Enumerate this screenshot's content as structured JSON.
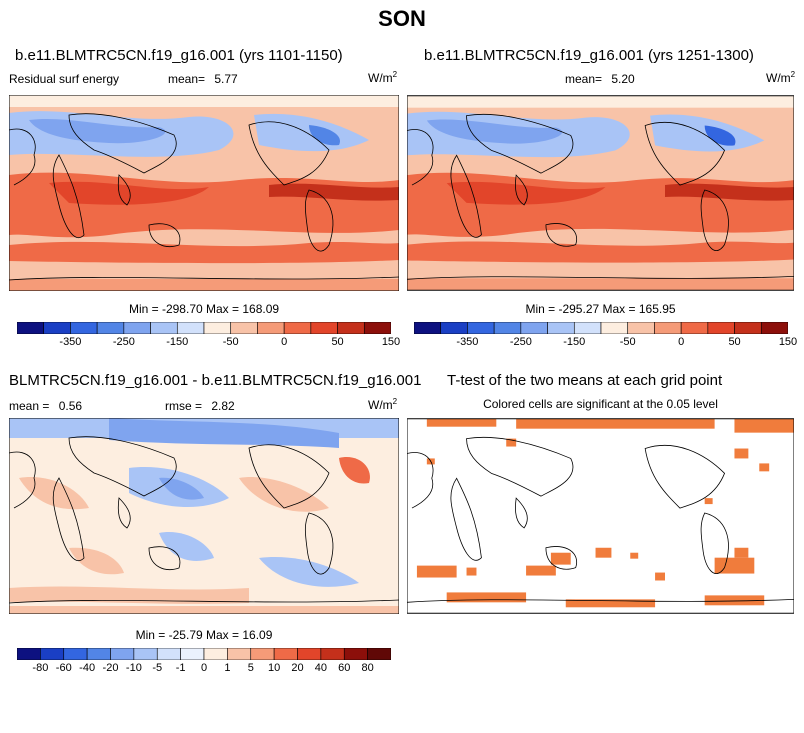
{
  "figure_title": "SON",
  "panels": [
    {
      "title": "b.e11.BLMTRC5CN.f19_g16.001 (yrs 1101-1150)",
      "left_label": "Residual surf energy",
      "mean_label": "mean=",
      "mean_value": "5.77",
      "units": "W/m",
      "units_sup": "2",
      "minmax": "Min = -298.70 Max = 168.09",
      "colorbar_ticks": [
        "-350",
        "-250",
        "-150",
        "-50",
        "0",
        "50",
        "150"
      ]
    },
    {
      "title": "b.e11.BLMTRC5CN.f19_g16.001 (yrs 1251-1300)",
      "left_label": "",
      "mean_label": "mean=",
      "mean_value": "5.20",
      "units": "W/m",
      "units_sup": "2",
      "minmax": "Min = -295.27 Max = 165.95",
      "colorbar_ticks": [
        "-350",
        "-250",
        "-150",
        "-50",
        "0",
        "50",
        "150"
      ]
    },
    {
      "title": "BLMTRC5CN.f19_g16.001 - b.e11.BLMTRC5CN.f19_g16.001",
      "mean_label": "mean =",
      "mean_value": "0.56",
      "rmse_label": "rmse =",
      "rmse_value": "2.82",
      "units": "W/m",
      "units_sup": "2",
      "minmax": "Min = -25.79 Max = 16.09",
      "colorbar_ticks": [
        "-80",
        "-60",
        "-40",
        "-20",
        "-10",
        "-5",
        "-1",
        "0",
        "1",
        "5",
        "10",
        "20",
        "40",
        "60",
        "80"
      ]
    },
    {
      "title": "T-test of the two means at each grid point",
      "subtitle": "Colored cells are significant at the 0.05 level"
    }
  ],
  "colors": {
    "abs_palette": [
      "#0d1180",
      "#1a3fc4",
      "#3366e0",
      "#5285e6",
      "#7fa4ef",
      "#a9c4f6",
      "#d2e1fb",
      "#fdeee0",
      "#f8c3a8",
      "#f59b78",
      "#ef6a47",
      "#e2452a",
      "#c4301b",
      "#8c0f0a"
    ],
    "diff_palette": [
      "#0d1180",
      "#1a3fc4",
      "#3366e0",
      "#5285e6",
      "#7fa4ef",
      "#a9c4f6",
      "#d2e1fb",
      "#eaf1fd",
      "#fdeee0",
      "#f8c3a8",
      "#f59b78",
      "#ef6a47",
      "#e2452a",
      "#c4301b",
      "#8c0f0a",
      "#600806"
    ],
    "significant": "#f07c3c"
  }
}
